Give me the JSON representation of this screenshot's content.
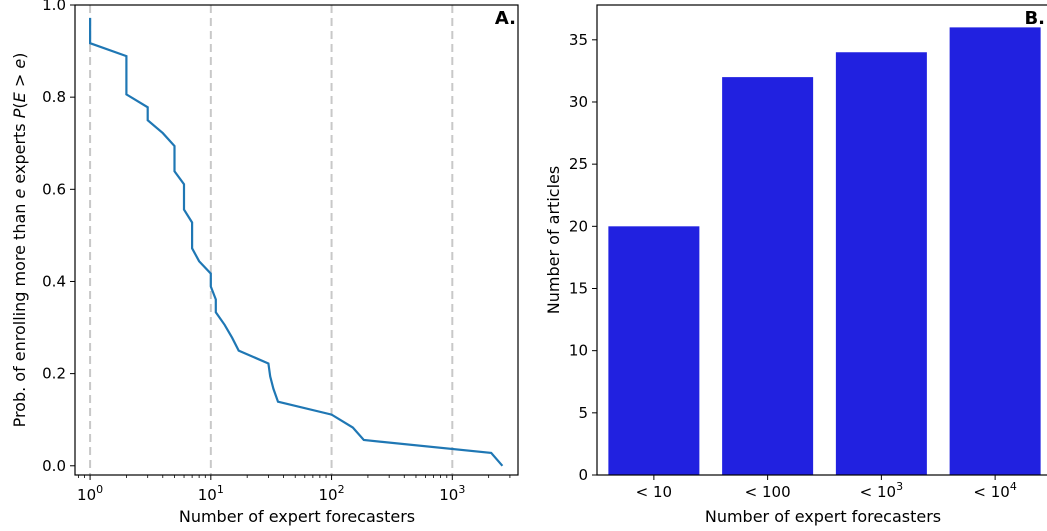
{
  "chart_data": [
    {
      "panel_label": "A.",
      "type": "line",
      "xscale": "log",
      "xlabel": "Number of expert forecasters",
      "ylabel": "Prob. of enrolling more than e experts P(E > e)",
      "ylabel_parts": {
        "prefix": "Prob. of enrolling more than ",
        "e_var": "e",
        "middle": " experts ",
        "p": "P",
        "paren_open": "(",
        "E": "E",
        "gt": " > ",
        "e2": "e",
        "paren_close": ")"
      },
      "xlim": [
        0.75,
        3500
      ],
      "ylim": [
        -0.02,
        1.0
      ],
      "x_ticks": [
        {
          "value": 1,
          "base": "10",
          "exp": "0"
        },
        {
          "value": 10,
          "base": "10",
          "exp": "1"
        },
        {
          "value": 100,
          "base": "10",
          "exp": "2"
        },
        {
          "value": 1000,
          "base": "10",
          "exp": "3"
        }
      ],
      "y_ticks": [
        {
          "value": 0.0,
          "label": "0.0"
        },
        {
          "value": 0.2,
          "label": "0.2"
        },
        {
          "value": 0.4,
          "label": "0.4"
        },
        {
          "value": 0.6,
          "label": "0.6"
        },
        {
          "value": 0.8,
          "label": "0.8"
        },
        {
          "value": 1.0,
          "label": "1.0"
        }
      ],
      "vlines": [
        1,
        10,
        100,
        1000
      ],
      "grid": false,
      "line_color": "#1f77b4",
      "series": [
        {
          "x": [
            1,
            1,
            2,
            2,
            3,
            3,
            4,
            5,
            5,
            6,
            6,
            7,
            7,
            8,
            10,
            10,
            11,
            11,
            13,
            15,
            17,
            30,
            31,
            33,
            36,
            100,
            150,
            185,
            2100,
            2600
          ],
          "y": [
            0.972,
            0.917,
            0.889,
            0.806,
            0.778,
            0.75,
            0.722,
            0.694,
            0.639,
            0.611,
            0.556,
            0.528,
            0.472,
            0.444,
            0.417,
            0.389,
            0.361,
            0.333,
            0.306,
            0.278,
            0.25,
            0.222,
            0.194,
            0.167,
            0.139,
            0.111,
            0.083,
            0.056,
            0.028,
            0.0
          ]
        }
      ]
    },
    {
      "panel_label": "B.",
      "type": "bar",
      "xlabel": "Number of expert forecasters",
      "ylabel": "Number of articles",
      "categories": [
        {
          "prefix": "< 10",
          "sup": ""
        },
        {
          "prefix": "< 100",
          "sup": ""
        },
        {
          "prefix": "< 10",
          "sup": "3"
        },
        {
          "prefix": "< 10",
          "sup": "4"
        }
      ],
      "values": [
        20,
        32,
        34,
        36
      ],
      "ylim": [
        0,
        37.8
      ],
      "y_ticks": [
        {
          "value": 0,
          "label": "0"
        },
        {
          "value": 5,
          "label": "5"
        },
        {
          "value": 10,
          "label": "10"
        },
        {
          "value": 15,
          "label": "15"
        },
        {
          "value": 20,
          "label": "20"
        },
        {
          "value": 25,
          "label": "25"
        },
        {
          "value": 30,
          "label": "30"
        },
        {
          "value": 35,
          "label": "35"
        }
      ],
      "bar_color": "#2121e0",
      "grid": false
    }
  ]
}
